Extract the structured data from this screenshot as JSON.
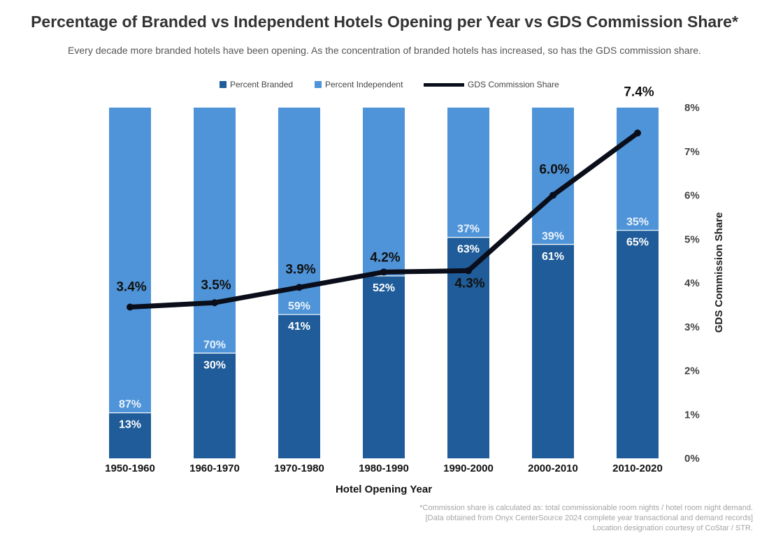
{
  "chart_data": {
    "type": "bar",
    "title": "Percentage of Branded vs Independent Hotels Opening per Year vs GDS Commission Share*",
    "subtitle": "Every decade more branded hotels have been opening. As the concentration of branded hotels has increased, so has the GDS commission share.",
    "xlabel": "Hotel Opening Year",
    "ylabel_right": "GDS Commission Share",
    "categories": [
      "1950-1960",
      "1960-1970",
      "1970-1980",
      "1980-1990",
      "1990-2000",
      "2000-2010",
      "2010-2020"
    ],
    "series": [
      {
        "name": "Percent Branded",
        "kind": "stacked-bar",
        "color": "#1f5c99",
        "values": [
          13,
          30,
          41,
          52,
          63,
          61,
          65
        ],
        "labels": [
          "13%",
          "30%",
          "41%",
          "52%",
          "63%",
          "61%",
          "65%"
        ]
      },
      {
        "name": "Percent Independent",
        "kind": "stacked-bar",
        "color": "#4f94d8",
        "values": [
          87,
          70,
          59,
          48,
          37,
          39,
          35
        ],
        "labels": [
          "87%",
          "70%",
          "59%",
          "",
          "37%",
          "39%",
          "35%"
        ]
      },
      {
        "name": "GDS Commission Share",
        "kind": "line",
        "axis": "right",
        "color": "#0a0e1a",
        "values": [
          3.45,
          3.55,
          3.9,
          4.25,
          4.28,
          6.0,
          7.42
        ],
        "labels": [
          "3.4%",
          "3.5%",
          "3.9%",
          "4.2%",
          "4.3%",
          "6.0%",
          "7.4%"
        ]
      }
    ],
    "y_right": {
      "min": 0,
      "max": 8,
      "ticks": [
        "0%",
        "1%",
        "2%",
        "3%",
        "4%",
        "5%",
        "6%",
        "7%",
        "8%"
      ]
    },
    "legend_position": "top-center",
    "grid": false,
    "footnote": [
      "*Commission share is calculated as: total commissionable room nights / hotel room night demand.",
      "[Data obtained from Onyx CenterSource 2024 complete year transactional and demand records]",
      "Location designation courtesy of CoStar / STR."
    ]
  }
}
